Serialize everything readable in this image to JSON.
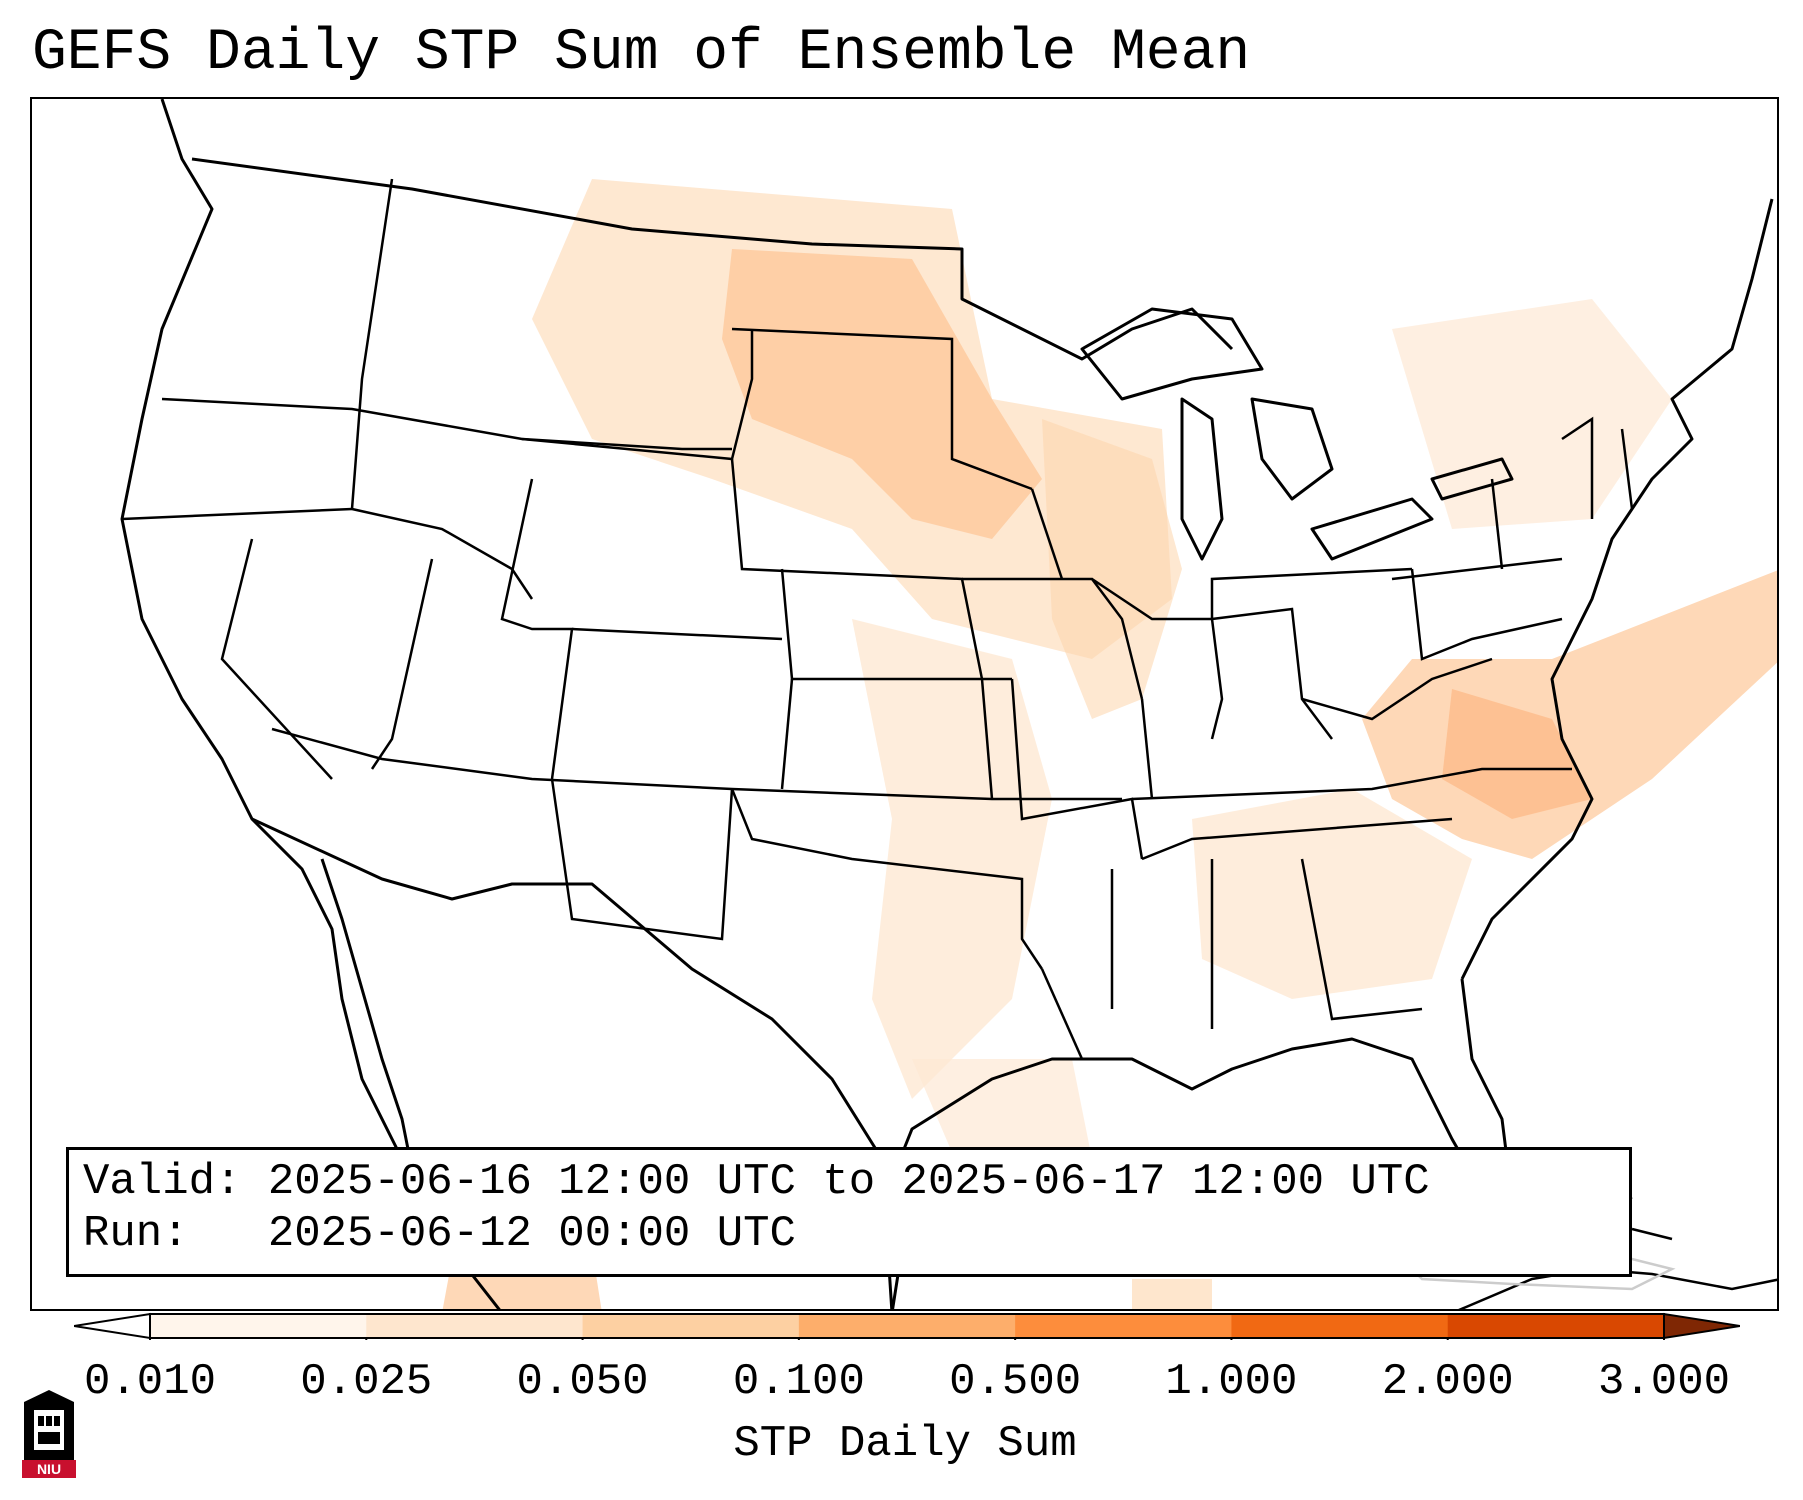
{
  "title": "GEFS Daily STP Sum of Ensemble Mean",
  "info": {
    "valid_label": "Valid:",
    "valid_value": "2025-06-16 12:00 UTC to 2025-06-17 12:00 UTC",
    "run_label": "Run:",
    "run_value": "2025-06-12 00:00 UTC"
  },
  "colorbar": {
    "label": "STP Daily Sum",
    "ticks": [
      "0.010",
      "0.025",
      "0.050",
      "0.100",
      "0.500",
      "1.000",
      "2.000",
      "3.000"
    ],
    "colors": [
      "#fff5eb",
      "#fee6ce",
      "#fdd0a2",
      "#fdae6b",
      "#fd8d3c",
      "#f16913",
      "#d94801",
      "#a63603"
    ]
  },
  "logo": {
    "text": "NIU",
    "color": "#c8102e"
  },
  "map": {
    "region": "Contiguous United States",
    "field": "STP daily sum shading",
    "shading_color": "#fdd0a2"
  }
}
